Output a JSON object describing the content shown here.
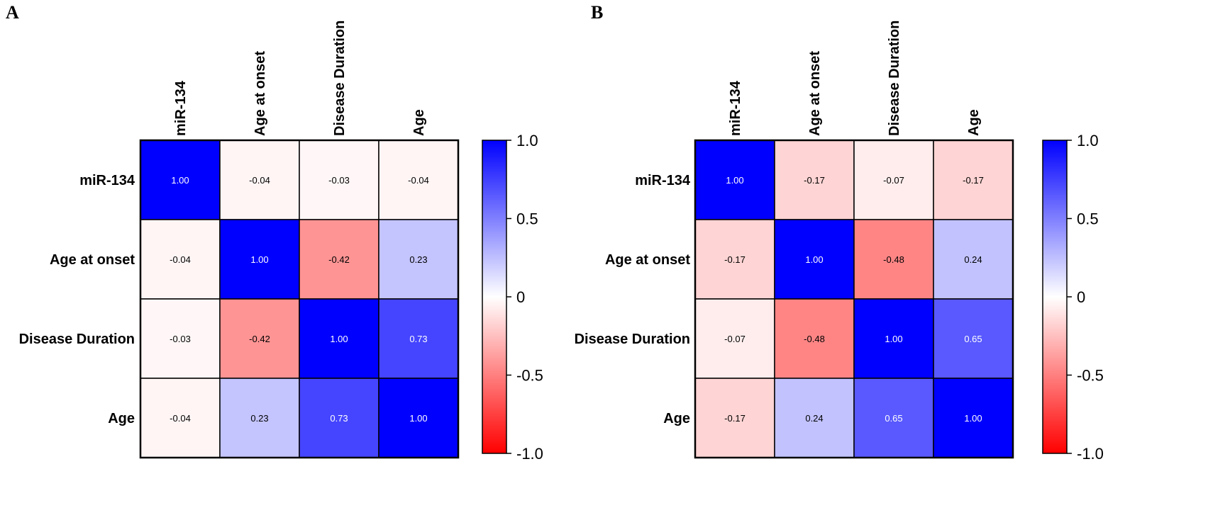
{
  "chart_data": [
    {
      "type": "heatmap",
      "panel_label": "A",
      "variables": [
        "miR-134",
        "Age at onset",
        "Disease Duration",
        "Age"
      ],
      "values": [
        [
          "1.00",
          "-0.04",
          "-0.03",
          "-0.04"
        ],
        [
          "-0.04",
          "1.00",
          "-0.42",
          "0.23"
        ],
        [
          "-0.03",
          "-0.42",
          "1.00",
          "0.73"
        ],
        [
          "-0.04",
          "0.23",
          "0.73",
          "1.00"
        ]
      ],
      "colorbar": {
        "range": [
          -1.0,
          1.0
        ],
        "ticks": [
          "1.0",
          "0.5",
          "0",
          "-0.5",
          "-1.0"
        ],
        "colors": {
          "positive": "#0000ff",
          "zero": "#ffffff",
          "negative": "#ff0000"
        }
      }
    },
    {
      "type": "heatmap",
      "panel_label": "B",
      "variables": [
        "miR-134",
        "Age at onset",
        "Disease Duration",
        "Age"
      ],
      "values": [
        [
          "1.00",
          "-0.17",
          "-0.07",
          "-0.17"
        ],
        [
          "-0.17",
          "1.00",
          "-0.48",
          "0.24"
        ],
        [
          "-0.07",
          "-0.48",
          "1.00",
          "0.65"
        ],
        [
          "-0.17",
          "0.24",
          "0.65",
          "1.00"
        ]
      ],
      "colorbar": {
        "range": [
          -1.0,
          1.0
        ],
        "ticks": [
          "1.0",
          "0.5",
          "0",
          "-0.5",
          "-1.0"
        ],
        "colors": {
          "positive": "#0000ff",
          "zero": "#ffffff",
          "negative": "#ff0000"
        }
      }
    }
  ]
}
